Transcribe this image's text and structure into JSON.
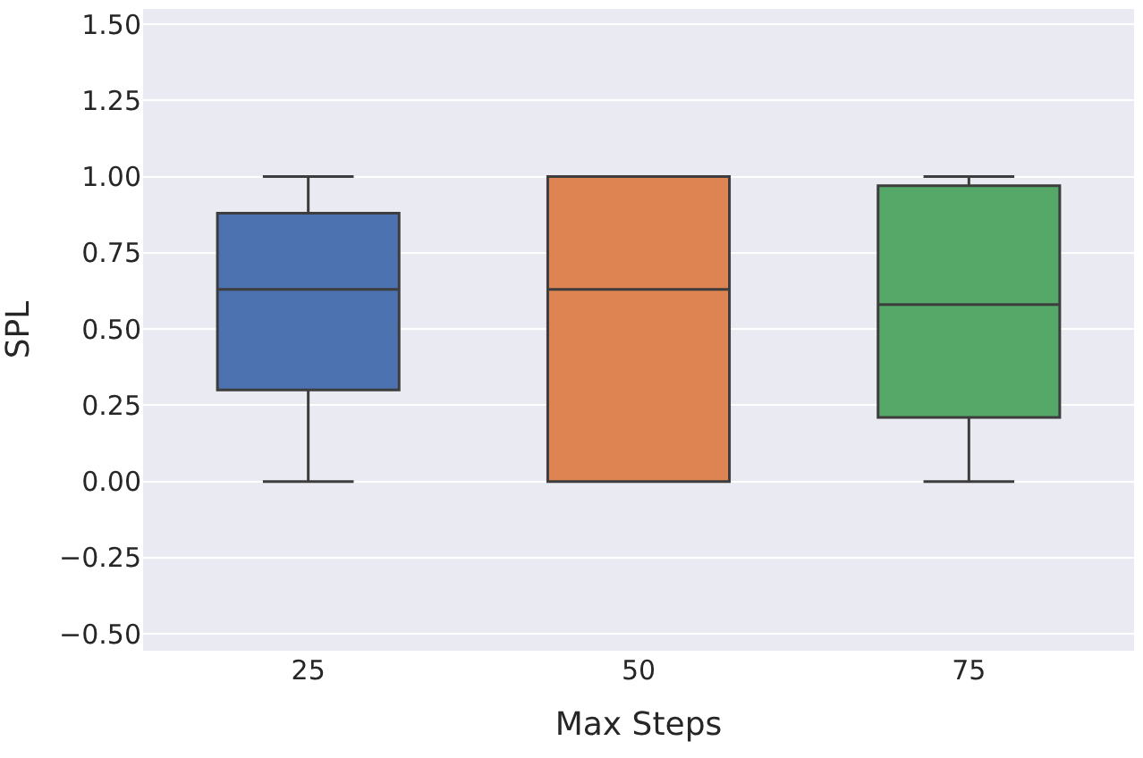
{
  "chart_data": {
    "type": "box",
    "xlabel": "Max Steps",
    "ylabel": "SPL",
    "categories": [
      "25",
      "50",
      "75"
    ],
    "colors": [
      "#4c72b0",
      "#dd8452",
      "#55a868"
    ],
    "boxes": [
      {
        "low": 0.0,
        "q1": 0.3,
        "median": 0.63,
        "q3": 0.88,
        "high": 1.0
      },
      {
        "low": 0.0,
        "q1": 0.0,
        "median": 0.63,
        "q3": 1.0,
        "high": 1.0
      },
      {
        "low": 0.0,
        "q1": 0.21,
        "median": 0.58,
        "q3": 0.97,
        "high": 1.0
      }
    ],
    "ylim": [
      -0.555,
      1.55
    ],
    "yticks": [
      {
        "value": -0.5,
        "label": "−0.50"
      },
      {
        "value": -0.25,
        "label": "−0.25"
      },
      {
        "value": 0.0,
        "label": "0.00"
      },
      {
        "value": 0.25,
        "label": "0.25"
      },
      {
        "value": 0.5,
        "label": "0.50"
      },
      {
        "value": 0.75,
        "label": "0.75"
      },
      {
        "value": 1.0,
        "label": "1.00"
      },
      {
        "value": 1.25,
        "label": "1.25"
      },
      {
        "value": 1.5,
        "label": "1.50"
      }
    ],
    "grid": "y"
  }
}
